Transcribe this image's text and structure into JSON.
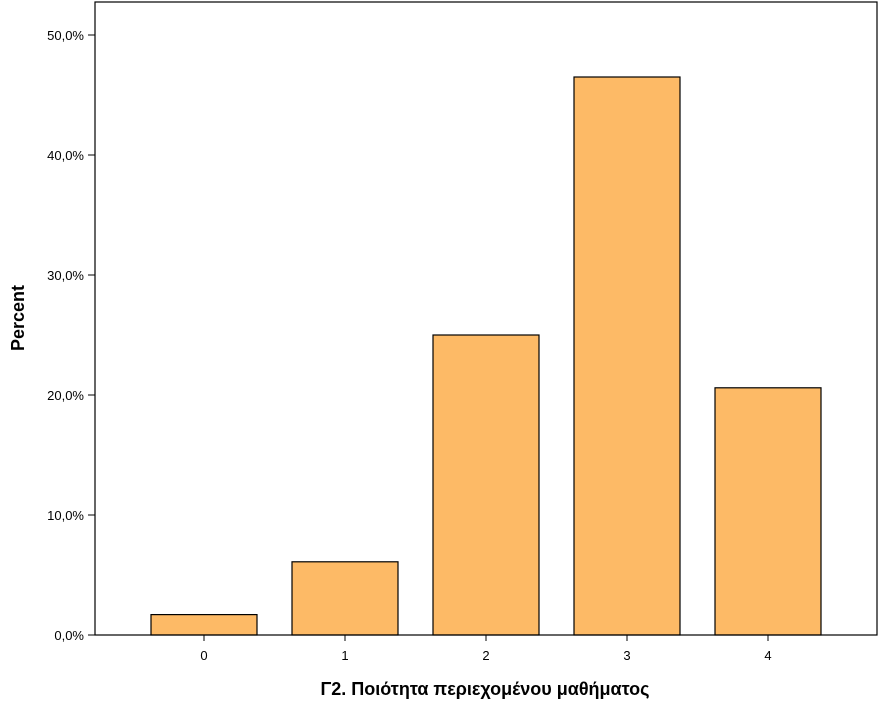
{
  "chart_data": {
    "type": "bar",
    "title": "",
    "xlabel": "Γ2. Ποιότητα περιεχομένου μαθήματος",
    "ylabel": "Percent",
    "categories": [
      "0",
      "1",
      "2",
      "3",
      "4"
    ],
    "values": [
      1.7,
      6.1,
      25.0,
      46.5,
      20.6
    ],
    "ylim": [
      0,
      50
    ],
    "yticks": [
      0,
      10,
      20,
      30,
      40,
      50
    ],
    "ytick_labels": [
      "0,0%",
      "10,0%",
      "20,0%",
      "30,0%",
      "40,0%",
      "50,0%"
    ],
    "grid": false,
    "legend": "none",
    "colors": {
      "bar_fill": "#fdba66",
      "bar_stroke": "#000000",
      "axis": "#000000"
    }
  }
}
